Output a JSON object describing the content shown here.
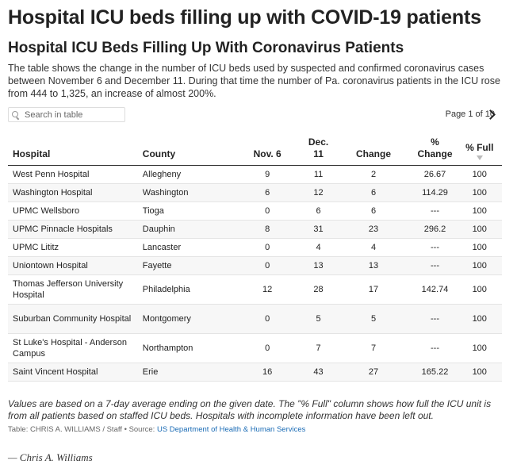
{
  "page_title": "Hospital ICU beds filling up with COVID-19 patients",
  "search": {
    "placeholder": "Search in table"
  },
  "pagination": {
    "label": "Page 1 of 10"
  },
  "chart_data": {
    "type": "table",
    "title": "Hospital ICU Beds Filling Up With Coronavirus Patients",
    "subtitle": "The table shows the change in the number of ICU beds used by suspected and confirmed coronavirus cases between November 6 and December 11. During that time the number of Pa. coronavirus patients in the ICU rose from 444 to 1,325, an increase of almost 200%.",
    "columns": [
      "Hospital",
      "County",
      "Nov. 6",
      "Dec. 11",
      "Change",
      "% Change",
      "% Full"
    ],
    "sorted_column": "% Full",
    "rows": [
      [
        "West Penn Hospital",
        "Allegheny",
        "9",
        "11",
        "2",
        "26.67",
        "100"
      ],
      [
        "Washington Hospital",
        "Washington",
        "6",
        "12",
        "6",
        "114.29",
        "100"
      ],
      [
        "UPMC Wellsboro",
        "Tioga",
        "0",
        "6",
        "6",
        "---",
        "100"
      ],
      [
        "UPMC Pinnacle Hospitals",
        "Dauphin",
        "8",
        "31",
        "23",
        "296.2",
        "100"
      ],
      [
        "UPMC Lititz",
        "Lancaster",
        "0",
        "4",
        "4",
        "---",
        "100"
      ],
      [
        "Uniontown Hospital",
        "Fayette",
        "0",
        "13",
        "13",
        "---",
        "100"
      ],
      [
        "Thomas Jefferson University Hospital",
        "Philadelphia",
        "12",
        "28",
        "17",
        "142.74",
        "100"
      ],
      [
        "Suburban Community Hospital",
        "Montgomery",
        "0",
        "5",
        "5",
        "---",
        "100"
      ],
      [
        "St Luke's Hospital - Anderson Campus",
        "Northampton",
        "0",
        "7",
        "7",
        "---",
        "100"
      ],
      [
        "Saint Vincent Hospital",
        "Erie",
        "16",
        "43",
        "27",
        "165.22",
        "100"
      ]
    ]
  },
  "footnote": "Values are based on a 7-day average ending on the given date. The \"% Full\" column shows how full the ICU unit is from all patients based on staffed ICU beds. Hospitals with incomplete information have been left out.",
  "source": {
    "prefix": "Table: CHRIS A. WILLIAMS / Staff • Source: ",
    "link_text": "US Department of Health & Human Services"
  },
  "byline": "— Chris A. Williams"
}
